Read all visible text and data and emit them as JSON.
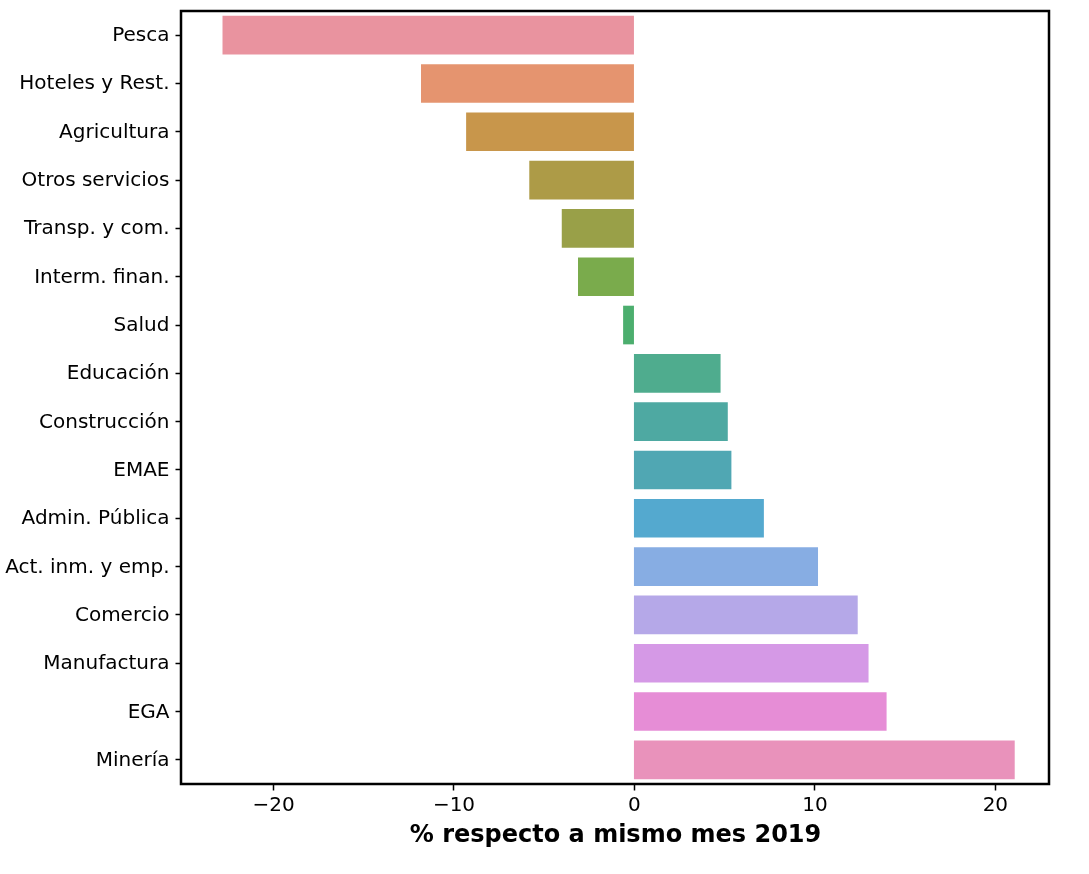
{
  "chart_data": {
    "type": "bar",
    "orientation": "horizontal",
    "xlabel": "% respecto a mismo mes 2019",
    "categories": [
      "Pesca",
      "Hoteles y Rest.",
      "Agricultura",
      "Otros servicios",
      "Transp. y com.",
      "Interm. finan.",
      "Salud",
      "Educación",
      "Construcción",
      "EMAE",
      "Admin. Pública",
      "Act. inm. y emp.",
      "Comercio",
      "Manufactura",
      "EGA",
      "Minería"
    ],
    "values": [
      -22.8,
      -11.8,
      -9.3,
      -5.8,
      -4.0,
      -3.1,
      -0.6,
      4.8,
      5.2,
      5.4,
      7.2,
      10.2,
      12.4,
      13.0,
      14.0,
      21.1
    ],
    "colors": [
      "#e9939f",
      "#e5946f",
      "#c8964b",
      "#ad9b47",
      "#99a048",
      "#7aab4c",
      "#4cae6e",
      "#4fac8e",
      "#4ea9a2",
      "#50a7b3",
      "#54a9cf",
      "#87ade3",
      "#b5a8e8",
      "#d599e6",
      "#e68dd6",
      "#e992bb"
    ],
    "xlim": [
      -25.1,
      23
    ],
    "xticks": [
      -20,
      -10,
      0,
      10,
      20
    ],
    "grid": false
  }
}
